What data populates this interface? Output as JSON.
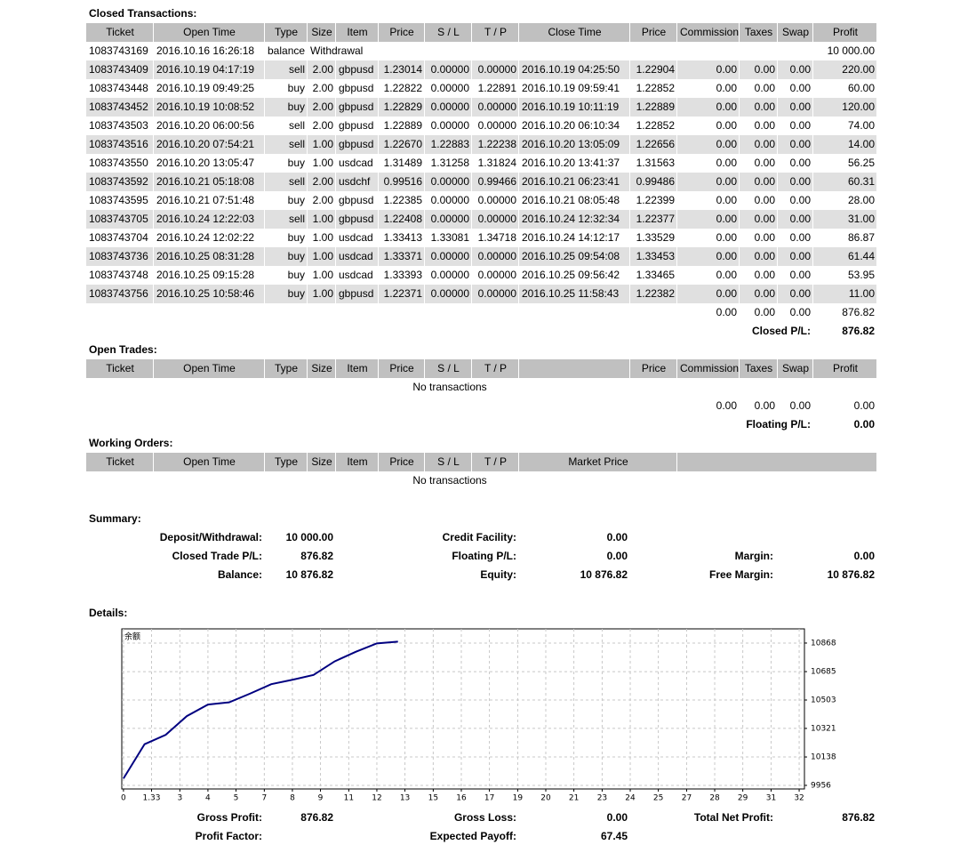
{
  "closed_transactions": {
    "title": "Closed Transactions:",
    "headers": [
      "Ticket",
      "Open Time",
      "Type",
      "Size",
      "Item",
      "Price",
      "S / L",
      "T / P",
      "Close Time",
      "Price",
      "Commission",
      "Taxes",
      "Swap",
      "Profit"
    ],
    "balance_row": {
      "ticket": "1083743169",
      "open_time": "2016.10.16 16:26:18",
      "type": "balance",
      "comment": "Withdrawal",
      "profit": "10 000.00"
    },
    "rows": [
      [
        "1083743409",
        "2016.10.19 04:17:19",
        "sell",
        "2.00",
        "gbpusd",
        "1.23014",
        "0.00000",
        "0.00000",
        "2016.10.19 04:25:50",
        "1.22904",
        "0.00",
        "0.00",
        "0.00",
        "220.00"
      ],
      [
        "1083743448",
        "2016.10.19 09:49:25",
        "buy",
        "2.00",
        "gbpusd",
        "1.22822",
        "0.00000",
        "1.22891",
        "2016.10.19 09:59:41",
        "1.22852",
        "0.00",
        "0.00",
        "0.00",
        "60.00"
      ],
      [
        "1083743452",
        "2016.10.19 10:08:52",
        "buy",
        "2.00",
        "gbpusd",
        "1.22829",
        "0.00000",
        "0.00000",
        "2016.10.19 10:11:19",
        "1.22889",
        "0.00",
        "0.00",
        "0.00",
        "120.00"
      ],
      [
        "1083743503",
        "2016.10.20 06:00:56",
        "sell",
        "2.00",
        "gbpusd",
        "1.22889",
        "0.00000",
        "0.00000",
        "2016.10.20 06:10:34",
        "1.22852",
        "0.00",
        "0.00",
        "0.00",
        "74.00"
      ],
      [
        "1083743516",
        "2016.10.20 07:54:21",
        "sell",
        "1.00",
        "gbpusd",
        "1.22670",
        "1.22883",
        "1.22238",
        "2016.10.20 13:05:09",
        "1.22656",
        "0.00",
        "0.00",
        "0.00",
        "14.00"
      ],
      [
        "1083743550",
        "2016.10.20 13:05:47",
        "buy",
        "1.00",
        "usdcad",
        "1.31489",
        "1.31258",
        "1.31824",
        "2016.10.20 13:41:37",
        "1.31563",
        "0.00",
        "0.00",
        "0.00",
        "56.25"
      ],
      [
        "1083743592",
        "2016.10.21 05:18:08",
        "sell",
        "2.00",
        "usdchf",
        "0.99516",
        "0.00000",
        "0.99466",
        "2016.10.21 06:23:41",
        "0.99486",
        "0.00",
        "0.00",
        "0.00",
        "60.31"
      ],
      [
        "1083743595",
        "2016.10.21 07:51:48",
        "buy",
        "2.00",
        "gbpusd",
        "1.22385",
        "0.00000",
        "0.00000",
        "2016.10.21 08:05:48",
        "1.22399",
        "0.00",
        "0.00",
        "0.00",
        "28.00"
      ],
      [
        "1083743705",
        "2016.10.24 12:22:03",
        "sell",
        "1.00",
        "gbpusd",
        "1.22408",
        "0.00000",
        "0.00000",
        "2016.10.24 12:32:34",
        "1.22377",
        "0.00",
        "0.00",
        "0.00",
        "31.00"
      ],
      [
        "1083743704",
        "2016.10.24 12:02:22",
        "buy",
        "1.00",
        "usdcad",
        "1.33413",
        "1.33081",
        "1.34718",
        "2016.10.24 14:12:17",
        "1.33529",
        "0.00",
        "0.00",
        "0.00",
        "86.87"
      ],
      [
        "1083743736",
        "2016.10.25 08:31:28",
        "buy",
        "1.00",
        "usdcad",
        "1.33371",
        "0.00000",
        "0.00000",
        "2016.10.25 09:54:08",
        "1.33453",
        "0.00",
        "0.00",
        "0.00",
        "61.44"
      ],
      [
        "1083743748",
        "2016.10.25 09:15:28",
        "buy",
        "1.00",
        "usdcad",
        "1.33393",
        "0.00000",
        "0.00000",
        "2016.10.25 09:56:42",
        "1.33465",
        "0.00",
        "0.00",
        "0.00",
        "53.95"
      ],
      [
        "1083743756",
        "2016.10.25 10:58:46",
        "buy",
        "1.00",
        "gbpusd",
        "1.22371",
        "0.00000",
        "0.00000",
        "2016.10.25 11:58:43",
        "1.22382",
        "0.00",
        "0.00",
        "0.00",
        "11.00"
      ]
    ],
    "totals": [
      "0.00",
      "0.00",
      "0.00",
      "876.82"
    ],
    "pl_label": "Closed P/L:",
    "pl_value": "876.82"
  },
  "open_trades": {
    "title": "Open Trades:",
    "headers": [
      "Ticket",
      "Open Time",
      "Type",
      "Size",
      "Item",
      "Price",
      "S / L",
      "T / P",
      "Price",
      "Commission",
      "Taxes",
      "Swap",
      "Profit"
    ],
    "empty": "No transactions",
    "totals": [
      "0.00",
      "0.00",
      "0.00",
      "0.00"
    ],
    "pl_label": "Floating P/L:",
    "pl_value": "0.00"
  },
  "working_orders": {
    "title": "Working Orders:",
    "headers": [
      "Ticket",
      "Open Time",
      "Type",
      "Size",
      "Item",
      "Price",
      "S / L",
      "T / P",
      "Market Price"
    ],
    "empty": "No transactions"
  },
  "summary": {
    "title": "Summary:",
    "items": [
      {
        "label": "Deposit/Withdrawal:",
        "value": "10 000.00"
      },
      {
        "label": "Credit Facility:",
        "value": "0.00"
      },
      {
        "label": "Closed Trade P/L:",
        "value": "876.82"
      },
      {
        "label": "Floating P/L:",
        "value": "0.00"
      },
      {
        "label": "Margin:",
        "value": "0.00"
      },
      {
        "label": "Balance:",
        "value": "10 876.82"
      },
      {
        "label": "Equity:",
        "value": "10 876.82"
      },
      {
        "label": "Free Margin:",
        "value": "10 876.82"
      }
    ]
  },
  "details": {
    "title": "Details:",
    "stats": [
      {
        "label": "Gross Profit:",
        "value": "876.82"
      },
      {
        "label": "Gross Loss:",
        "value": "0.00"
      },
      {
        "label": "Total Net Profit:",
        "value": "876.82"
      },
      {
        "label": "Profit Factor:"
      },
      {
        "label": "Expected Payoff:",
        "value": "67.45"
      }
    ]
  },
  "chart_data": {
    "type": "line",
    "x": [
      0,
      1,
      2,
      3,
      4,
      5,
      6,
      7,
      8,
      9,
      10,
      11,
      12,
      13
    ],
    "series": [
      {
        "name": "余额",
        "color": "#000080",
        "values": [
          10000,
          10220,
          10280,
          10400,
          10474,
          10488,
          10544.25,
          10604.56,
          10632.56,
          10663.56,
          10750.43,
          10811.87,
          10865.82,
          10876.82
        ]
      }
    ],
    "xlim": [
      -0.08,
      32.25
    ],
    "ylim": [
      9933,
      10959
    ],
    "xticks": [
      0,
      1.33,
      {
        "value": 2.67,
        "label": "3"
      },
      4,
      {
        "value": 5.33,
        "label": "5"
      },
      {
        "value": 6.67,
        "label": "7"
      },
      8,
      {
        "value": 9.33,
        "label": "9"
      },
      {
        "value": 10.67,
        "label": "11"
      },
      12,
      {
        "value": 13.33,
        "label": "13"
      },
      {
        "value": 14.67,
        "label": "15"
      },
      16,
      {
        "value": 17.33,
        "label": "17"
      },
      {
        "value": 18.67,
        "label": "19"
      },
      20,
      {
        "value": 21.33,
        "label": "21"
      },
      {
        "value": 22.67,
        "label": "23"
      },
      24,
      {
        "value": 25.33,
        "label": "25"
      },
      {
        "value": 26.67,
        "label": "27"
      },
      28,
      {
        "value": 29.33,
        "label": "29"
      },
      {
        "value": 30.67,
        "label": "31"
      },
      32
    ],
    "yticks": [
      9956,
      10138,
      10321,
      10503,
      10685,
      10868
    ],
    "grid": true
  }
}
